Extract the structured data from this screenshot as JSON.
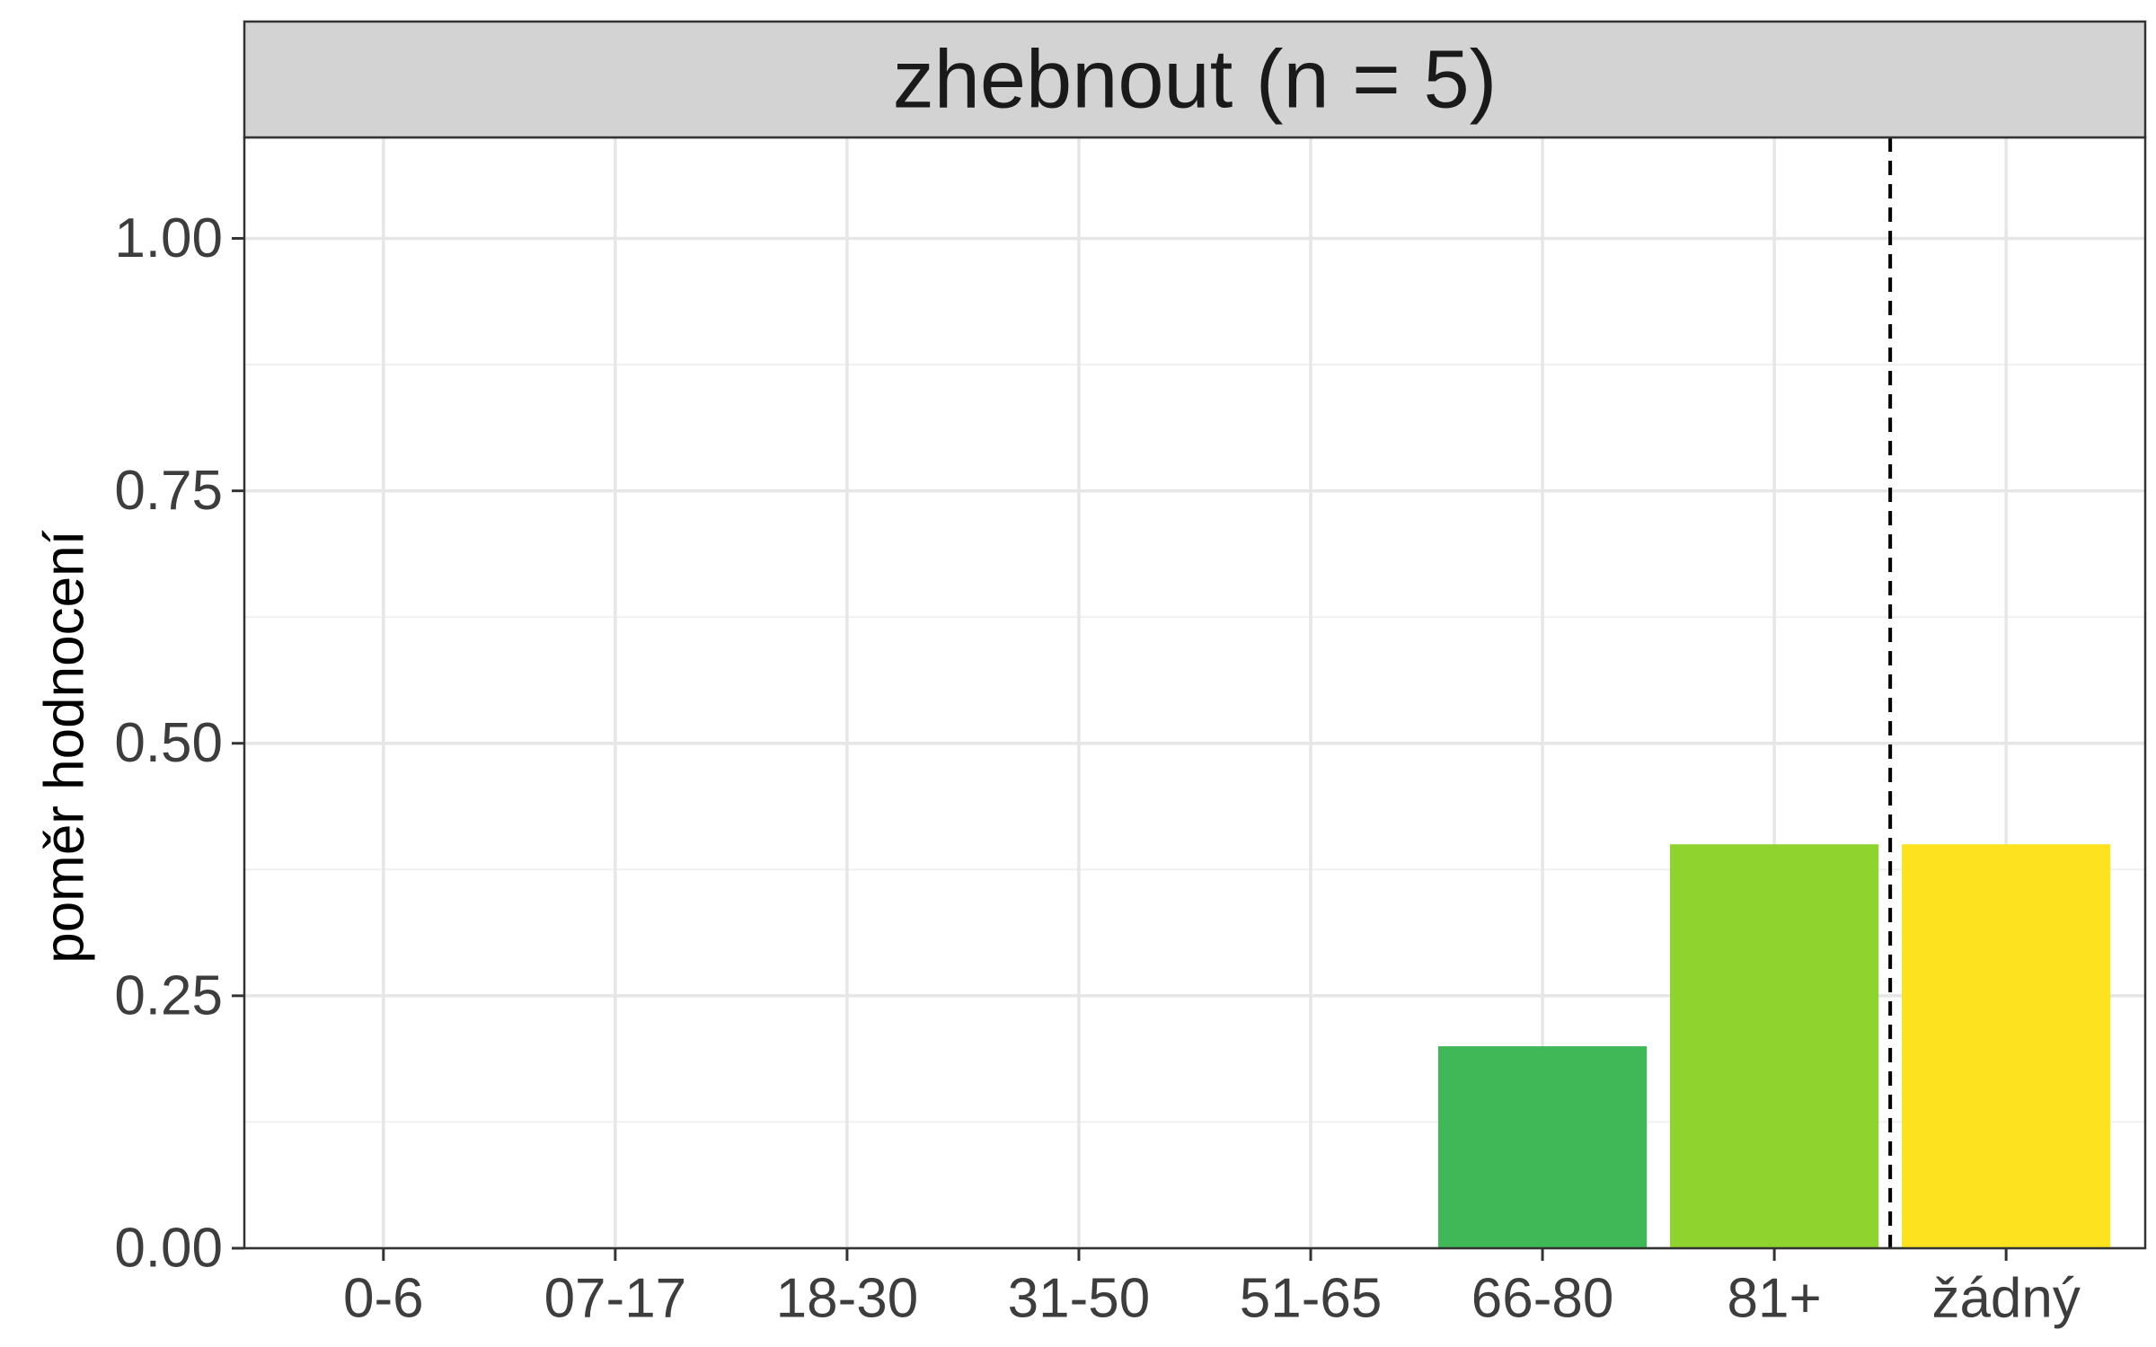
{
  "chart_data": {
    "type": "bar",
    "title": "zhebnout (n = 5)",
    "xlabel": "",
    "ylabel": "poměr hodnocení",
    "categories": [
      "0-6",
      "07-17",
      "18-30",
      "31-50",
      "51-65",
      "66-80",
      "81+",
      "žádný"
    ],
    "values": [
      0,
      0,
      0,
      0,
      0,
      0.2,
      0.4,
      0.4
    ],
    "colors": [
      "#440154",
      "#46337e",
      "#365c8d",
      "#277f8e",
      "#1fa187",
      "#40b857",
      "#8fd32e",
      "#fde31f"
    ],
    "ylim": [
      0,
      1.1
    ],
    "yticks": [
      0,
      0.25,
      0.5,
      0.75,
      1
    ],
    "ytick_labels": [
      "0.00",
      "0.25",
      "0.50",
      "0.75",
      "1.00"
    ],
    "reference_line": {
      "between": [
        "81+",
        "žádný"
      ],
      "style": "dashed"
    },
    "grid": true,
    "legend": "none"
  }
}
